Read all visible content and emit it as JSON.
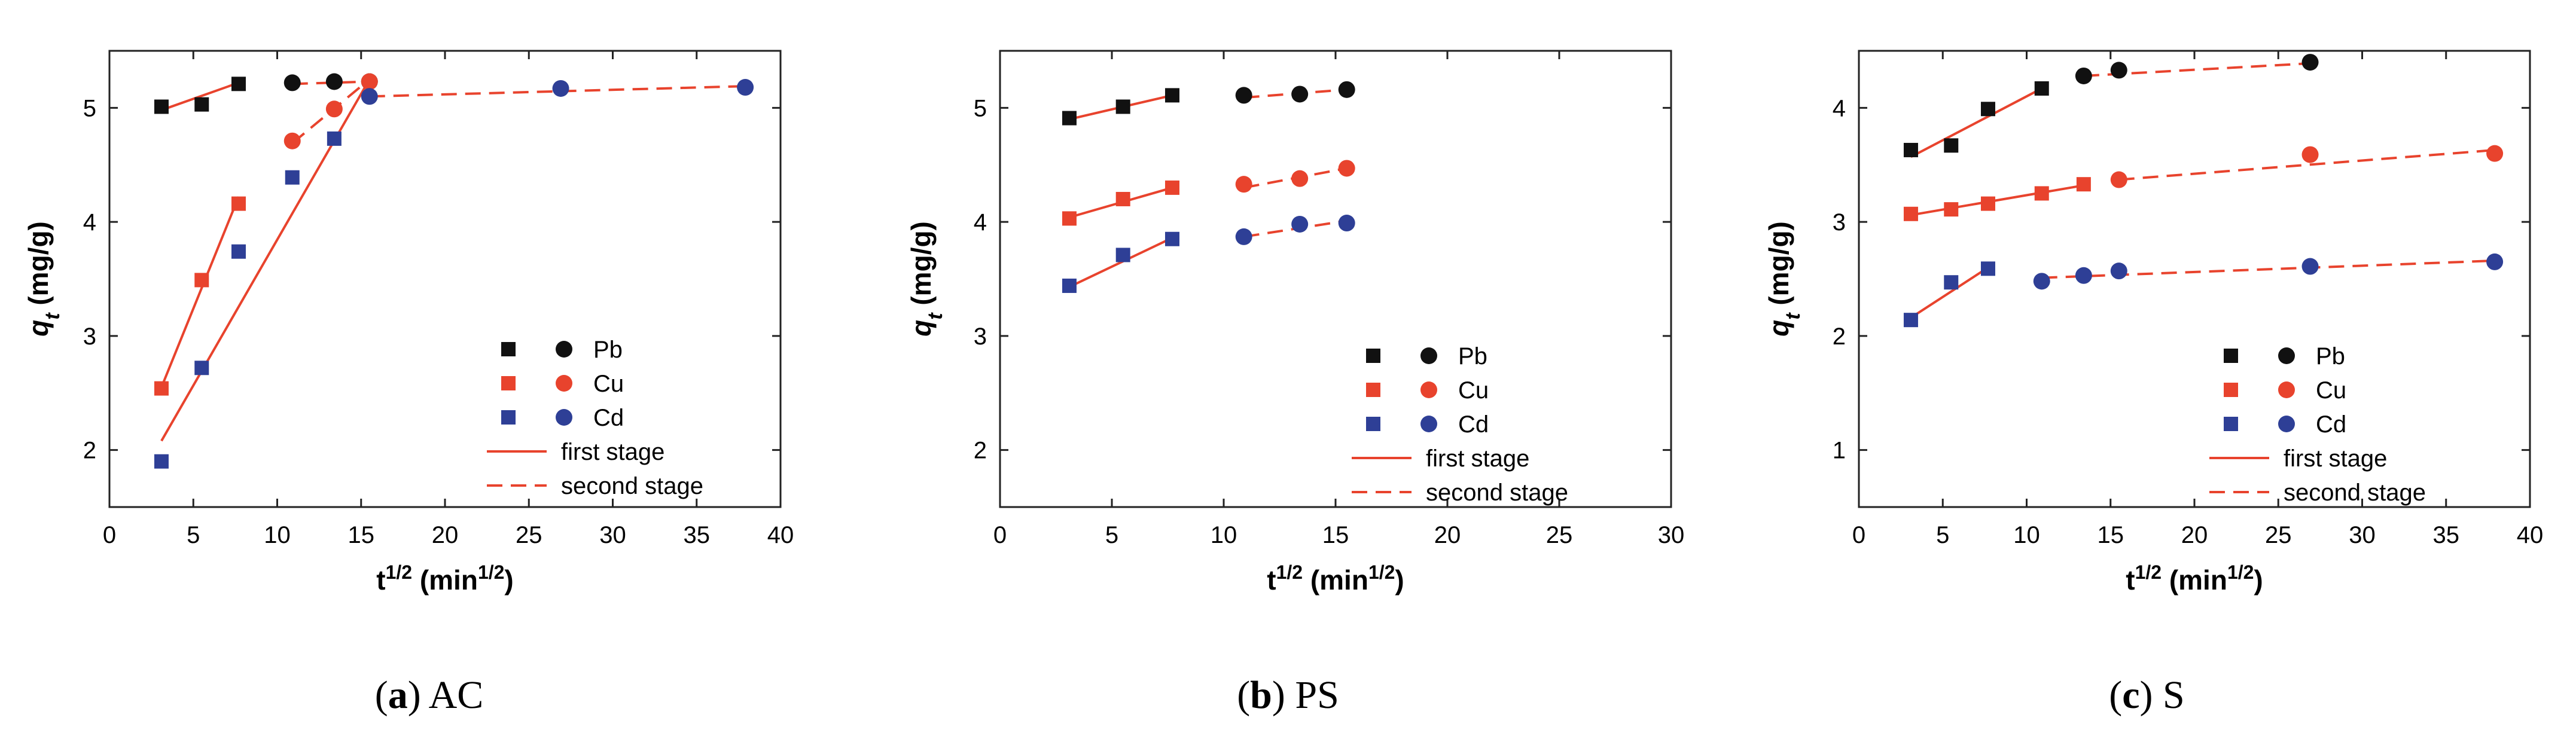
{
  "colors": {
    "pb": "#111111",
    "cu": "#e8432d",
    "cd": "#2e3f96",
    "fit": "#e8432d",
    "axis": "#222222"
  },
  "legend_labels": {
    "pb": "Pb",
    "cu": "Cu",
    "cd": "Cd",
    "first": "first stage",
    "second": "second stage"
  },
  "chart_data": [
    {
      "id": "a",
      "type": "scatter",
      "caption_letter": "a",
      "caption_name": "AC",
      "xlabel": "t1/2 (min1/2)",
      "ylabel": "qt (mg/g)",
      "xlim": [
        0,
        40
      ],
      "ylim": [
        1.5,
        5.5
      ],
      "xticks": [
        0,
        5,
        10,
        15,
        20,
        25,
        30,
        35,
        40
      ],
      "yticks": [
        2,
        3,
        4,
        5
      ],
      "series": [
        {
          "name": "Pb",
          "color": "pb",
          "first": [
            [
              3.1,
              5.01
            ],
            [
              5.5,
              5.03
            ],
            [
              7.7,
              5.21
            ]
          ],
          "second": [
            [
              10.9,
              5.22
            ],
            [
              13.4,
              5.23
            ],
            [
              15.5,
              5.23
            ]
          ],
          "fit1": [
            [
              3.1,
              4.98
            ],
            [
              7.7,
              5.22
            ]
          ],
          "fit2": [
            [
              10.9,
              5.21
            ],
            [
              15.5,
              5.23
            ]
          ]
        },
        {
          "name": "Cu",
          "color": "cu",
          "first": [
            [
              3.1,
              2.54
            ],
            [
              5.5,
              3.49
            ],
            [
              7.7,
              4.16
            ]
          ],
          "second": [
            [
              10.9,
              4.71
            ],
            [
              13.4,
              4.99
            ],
            [
              15.5,
              5.23
            ]
          ],
          "fit1": [
            [
              3.1,
              2.55
            ],
            [
              7.7,
              4.22
            ]
          ],
          "fit2": [
            [
              10.9,
              4.69
            ],
            [
              15.5,
              5.25
            ]
          ]
        },
        {
          "name": "Cd",
          "color": "cd",
          "first": [
            [
              3.1,
              1.9
            ],
            [
              5.5,
              2.72
            ],
            [
              7.7,
              3.74
            ],
            [
              10.9,
              4.39
            ],
            [
              13.4,
              4.73
            ]
          ],
          "second": [
            [
              15.5,
              5.1
            ],
            [
              26.9,
              5.17
            ],
            [
              37.9,
              5.18
            ]
          ],
          "fit1": [
            [
              3.1,
              2.08
            ],
            [
              15.5,
              5.25
            ]
          ],
          "fit2": [
            [
              15.5,
              5.1
            ],
            [
              37.9,
              5.19
            ]
          ]
        }
      ],
      "legend": "right-center"
    },
    {
      "id": "b",
      "type": "scatter",
      "caption_letter": "b",
      "caption_name": "PS",
      "xlabel": "t1/2 (min1/2)",
      "ylabel": "qt (mg/g)",
      "xlim": [
        0,
        30
      ],
      "ylim": [
        1.5,
        5.5
      ],
      "xticks": [
        0,
        5,
        10,
        15,
        20,
        25,
        30
      ],
      "yticks": [
        2,
        3,
        4,
        5
      ],
      "series": [
        {
          "name": "Pb",
          "color": "pb",
          "first": [
            [
              3.1,
              4.91
            ],
            [
              5.5,
              5.01
            ],
            [
              7.7,
              5.11
            ]
          ],
          "second": [
            [
              10.9,
              5.11
            ],
            [
              13.4,
              5.12
            ],
            [
              15.5,
              5.16
            ]
          ],
          "fit1": [
            [
              3.1,
              4.9
            ],
            [
              7.7,
              5.11
            ]
          ],
          "fit2": [
            [
              10.9,
              5.09
            ],
            [
              15.5,
              5.16
            ]
          ]
        },
        {
          "name": "Cu",
          "color": "cu",
          "first": [
            [
              3.1,
              4.03
            ],
            [
              5.5,
              4.2
            ],
            [
              7.7,
              4.3
            ]
          ],
          "second": [
            [
              10.9,
              4.33
            ],
            [
              13.4,
              4.38
            ],
            [
              15.5,
              4.47
            ]
          ],
          "fit1": [
            [
              3.1,
              4.04
            ],
            [
              7.7,
              4.3
            ]
          ],
          "fit2": [
            [
              10.9,
              4.3
            ],
            [
              15.5,
              4.47
            ]
          ]
        },
        {
          "name": "Cd",
          "color": "cd",
          "first": [
            [
              3.1,
              3.44
            ],
            [
              5.5,
              3.71
            ],
            [
              7.7,
              3.85
            ]
          ],
          "second": [
            [
              10.9,
              3.87
            ],
            [
              13.4,
              3.98
            ],
            [
              15.5,
              3.99
            ]
          ],
          "fit1": [
            [
              3.1,
              3.43
            ],
            [
              7.7,
              3.86
            ]
          ],
          "fit2": [
            [
              10.9,
              3.87
            ],
            [
              15.5,
              4.01
            ]
          ]
        }
      ],
      "legend": "right-bottom"
    },
    {
      "id": "c",
      "type": "scatter",
      "caption_letter": "c",
      "caption_name": "S",
      "xlabel": "t1/2 (min1/2)",
      "ylabel": "qt (mg/g)",
      "xlim": [
        0,
        40
      ],
      "ylim": [
        0.5,
        4.5
      ],
      "xticks": [
        0,
        5,
        10,
        15,
        20,
        25,
        30,
        35,
        40
      ],
      "yticks": [
        1,
        2,
        3,
        4
      ],
      "series": [
        {
          "name": "Pb",
          "color": "pb",
          "first": [
            [
              3.1,
              3.63
            ],
            [
              5.5,
              3.67
            ],
            [
              7.7,
              3.99
            ],
            [
              10.9,
              4.17
            ]
          ],
          "second": [
            [
              13.4,
              4.28
            ],
            [
              15.5,
              4.33
            ],
            [
              26.9,
              4.4
            ]
          ],
          "fit1": [
            [
              3.1,
              3.57
            ],
            [
              10.9,
              4.17
            ]
          ],
          "fit2": [
            [
              13.4,
              4.28
            ],
            [
              26.9,
              4.39
            ]
          ]
        },
        {
          "name": "Cu",
          "color": "cu",
          "first": [
            [
              3.1,
              3.07
            ],
            [
              5.5,
              3.11
            ],
            [
              7.7,
              3.16
            ],
            [
              10.9,
              3.25
            ],
            [
              13.4,
              3.33
            ]
          ],
          "second": [
            [
              15.5,
              3.37
            ],
            [
              26.9,
              3.59
            ],
            [
              37.9,
              3.6
            ]
          ],
          "fit1": [
            [
              3.1,
              3.06
            ],
            [
              13.4,
              3.32
            ]
          ],
          "fit2": [
            [
              15.5,
              3.37
            ],
            [
              37.9,
              3.63
            ]
          ]
        },
        {
          "name": "Cd",
          "color": "cd",
          "first": [
            [
              3.1,
              2.14
            ],
            [
              5.5,
              2.47
            ],
            [
              7.7,
              2.59
            ]
          ],
          "second": [
            [
              10.9,
              2.48
            ],
            [
              13.4,
              2.53
            ],
            [
              15.5,
              2.57
            ],
            [
              26.9,
              2.61
            ],
            [
              37.9,
              2.65
            ]
          ],
          "fit1": [
            [
              3.1,
              2.16
            ],
            [
              7.7,
              2.6
            ]
          ],
          "fit2": [
            [
              10.9,
              2.51
            ],
            [
              37.9,
              2.66
            ]
          ]
        }
      ],
      "legend": "right-bottom"
    }
  ]
}
